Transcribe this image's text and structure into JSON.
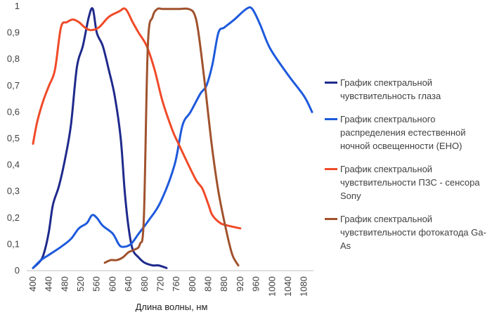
{
  "chart_data": {
    "type": "line",
    "title": "",
    "xlabel": "Длина волны, нм",
    "ylabel": "",
    "xlim": [
      400,
      1100
    ],
    "ylim": [
      0,
      1
    ],
    "grid": false,
    "legend_position": "right",
    "x_ticks": [
      "400",
      "440",
      "480",
      "520",
      "560",
      "600",
      "640",
      "680",
      "720",
      "760",
      "800",
      "840",
      "880",
      "920",
      "960",
      "1000",
      "1040",
      "1080"
    ],
    "y_ticks": [
      "0",
      "0,1",
      "0,2",
      "0,3",
      "0,4",
      "0,5",
      "0,6",
      "0,7",
      "0,8",
      "0,9",
      "1"
    ],
    "series": [
      {
        "name": "График спектральной чувствительность глаза",
        "color": "#1f2a8c",
        "points": [
          [
            400,
            0.01
          ],
          [
            420,
            0.04
          ],
          [
            430,
            0.08
          ],
          [
            440,
            0.15
          ],
          [
            450,
            0.25
          ],
          [
            465,
            0.32
          ],
          [
            480,
            0.42
          ],
          [
            495,
            0.55
          ],
          [
            510,
            0.77
          ],
          [
            525,
            0.85
          ],
          [
            540,
            0.96
          ],
          [
            550,
            0.99
          ],
          [
            560,
            0.9
          ],
          [
            575,
            0.85
          ],
          [
            590,
            0.76
          ],
          [
            605,
            0.66
          ],
          [
            620,
            0.5
          ],
          [
            630,
            0.3
          ],
          [
            640,
            0.16
          ],
          [
            650,
            0.08
          ],
          [
            665,
            0.05
          ],
          [
            680,
            0.03
          ],
          [
            700,
            0.02
          ],
          [
            715,
            0.02
          ],
          [
            735,
            0.01
          ]
        ]
      },
      {
        "name": "График спектрального распределения естественной ночной освещенности (ЕНО)",
        "color": "#1e5adc",
        "points": [
          [
            400,
            0.01
          ],
          [
            420,
            0.04
          ],
          [
            440,
            0.06
          ],
          [
            470,
            0.09
          ],
          [
            495,
            0.12
          ],
          [
            515,
            0.16
          ],
          [
            535,
            0.18
          ],
          [
            548,
            0.21
          ],
          [
            560,
            0.2
          ],
          [
            575,
            0.17
          ],
          [
            600,
            0.14
          ],
          [
            615,
            0.1
          ],
          [
            625,
            0.09
          ],
          [
            645,
            0.1
          ],
          [
            665,
            0.14
          ],
          [
            690,
            0.19
          ],
          [
            720,
            0.26
          ],
          [
            755,
            0.4
          ],
          [
            775,
            0.55
          ],
          [
            795,
            0.6
          ],
          [
            820,
            0.67
          ],
          [
            835,
            0.7
          ],
          [
            850,
            0.78
          ],
          [
            865,
            0.9
          ],
          [
            880,
            0.92
          ],
          [
            905,
            0.95
          ],
          [
            935,
            0.99
          ],
          [
            950,
            0.99
          ],
          [
            970,
            0.93
          ],
          [
            995,
            0.84
          ],
          [
            1040,
            0.74
          ],
          [
            1080,
            0.66
          ],
          [
            1100,
            0.6
          ]
        ]
      },
      {
        "name": "График спектральной чувствительности ПЗС - сенсора Sony",
        "color": "#f04a28",
        "points": [
          [
            400,
            0.48
          ],
          [
            410,
            0.56
          ],
          [
            425,
            0.64
          ],
          [
            440,
            0.7
          ],
          [
            455,
            0.76
          ],
          [
            470,
            0.92
          ],
          [
            485,
            0.94
          ],
          [
            500,
            0.95
          ],
          [
            515,
            0.94
          ],
          [
            530,
            0.92
          ],
          [
            545,
            0.91
          ],
          [
            565,
            0.92
          ],
          [
            590,
            0.96
          ],
          [
            615,
            0.98
          ],
          [
            632,
            0.99
          ],
          [
            650,
            0.94
          ],
          [
            665,
            0.9
          ],
          [
            685,
            0.85
          ],
          [
            705,
            0.76
          ],
          [
            725,
            0.64
          ],
          [
            750,
            0.53
          ],
          [
            765,
            0.48
          ],
          [
            790,
            0.4
          ],
          [
            810,
            0.34
          ],
          [
            825,
            0.31
          ],
          [
            840,
            0.25
          ],
          [
            850,
            0.21
          ],
          [
            870,
            0.18
          ],
          [
            890,
            0.17
          ],
          [
            920,
            0.16
          ]
        ]
      },
      {
        "name": "График спектральной чувствительности фотокатода Ga-As",
        "color": "#a0522d",
        "points": [
          [
            580,
            0.03
          ],
          [
            595,
            0.04
          ],
          [
            610,
            0.04
          ],
          [
            625,
            0.05
          ],
          [
            640,
            0.07
          ],
          [
            655,
            0.08
          ],
          [
            668,
            0.1
          ],
          [
            678,
            0.2
          ],
          [
            688,
            0.85
          ],
          [
            700,
            0.96
          ],
          [
            712,
            0.99
          ],
          [
            725,
            0.99
          ],
          [
            745,
            0.99
          ],
          [
            765,
            0.99
          ],
          [
            790,
            0.99
          ],
          [
            805,
            0.97
          ],
          [
            815,
            0.9
          ],
          [
            830,
            0.72
          ],
          [
            848,
            0.48
          ],
          [
            865,
            0.3
          ],
          [
            885,
            0.15
          ],
          [
            900,
            0.06
          ],
          [
            915,
            0.02
          ]
        ]
      }
    ]
  }
}
